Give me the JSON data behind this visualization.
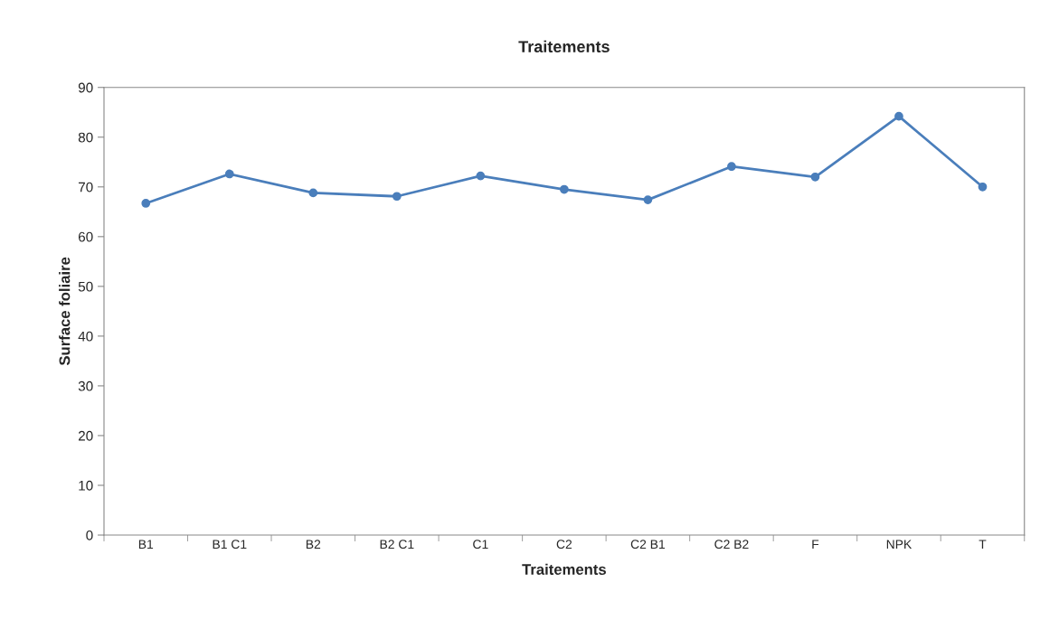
{
  "chart_data": {
    "type": "line",
    "title": "Traitements",
    "xlabel": "Traitements",
    "ylabel": "Surface foliaire",
    "categories": [
      "B1",
      "B1 C1",
      "B2",
      "B2 C1",
      "C1",
      "C2",
      "C2 B1",
      "C2 B2",
      "F",
      "NPK",
      "T"
    ],
    "series": [
      {
        "color": "#4a7ebb",
        "values": [
          66.7,
          72.6,
          68.8,
          68.1,
          72.2,
          69.5,
          67.4,
          74.1,
          72.0,
          84.2,
          70.0
        ]
      }
    ],
    "ylim": [
      0,
      90
    ],
    "yticks": [
      0,
      10,
      20,
      30,
      40,
      50,
      60,
      70,
      80,
      90
    ],
    "grid": false,
    "legend": false,
    "marker": "circle",
    "line_style": "solid"
  }
}
